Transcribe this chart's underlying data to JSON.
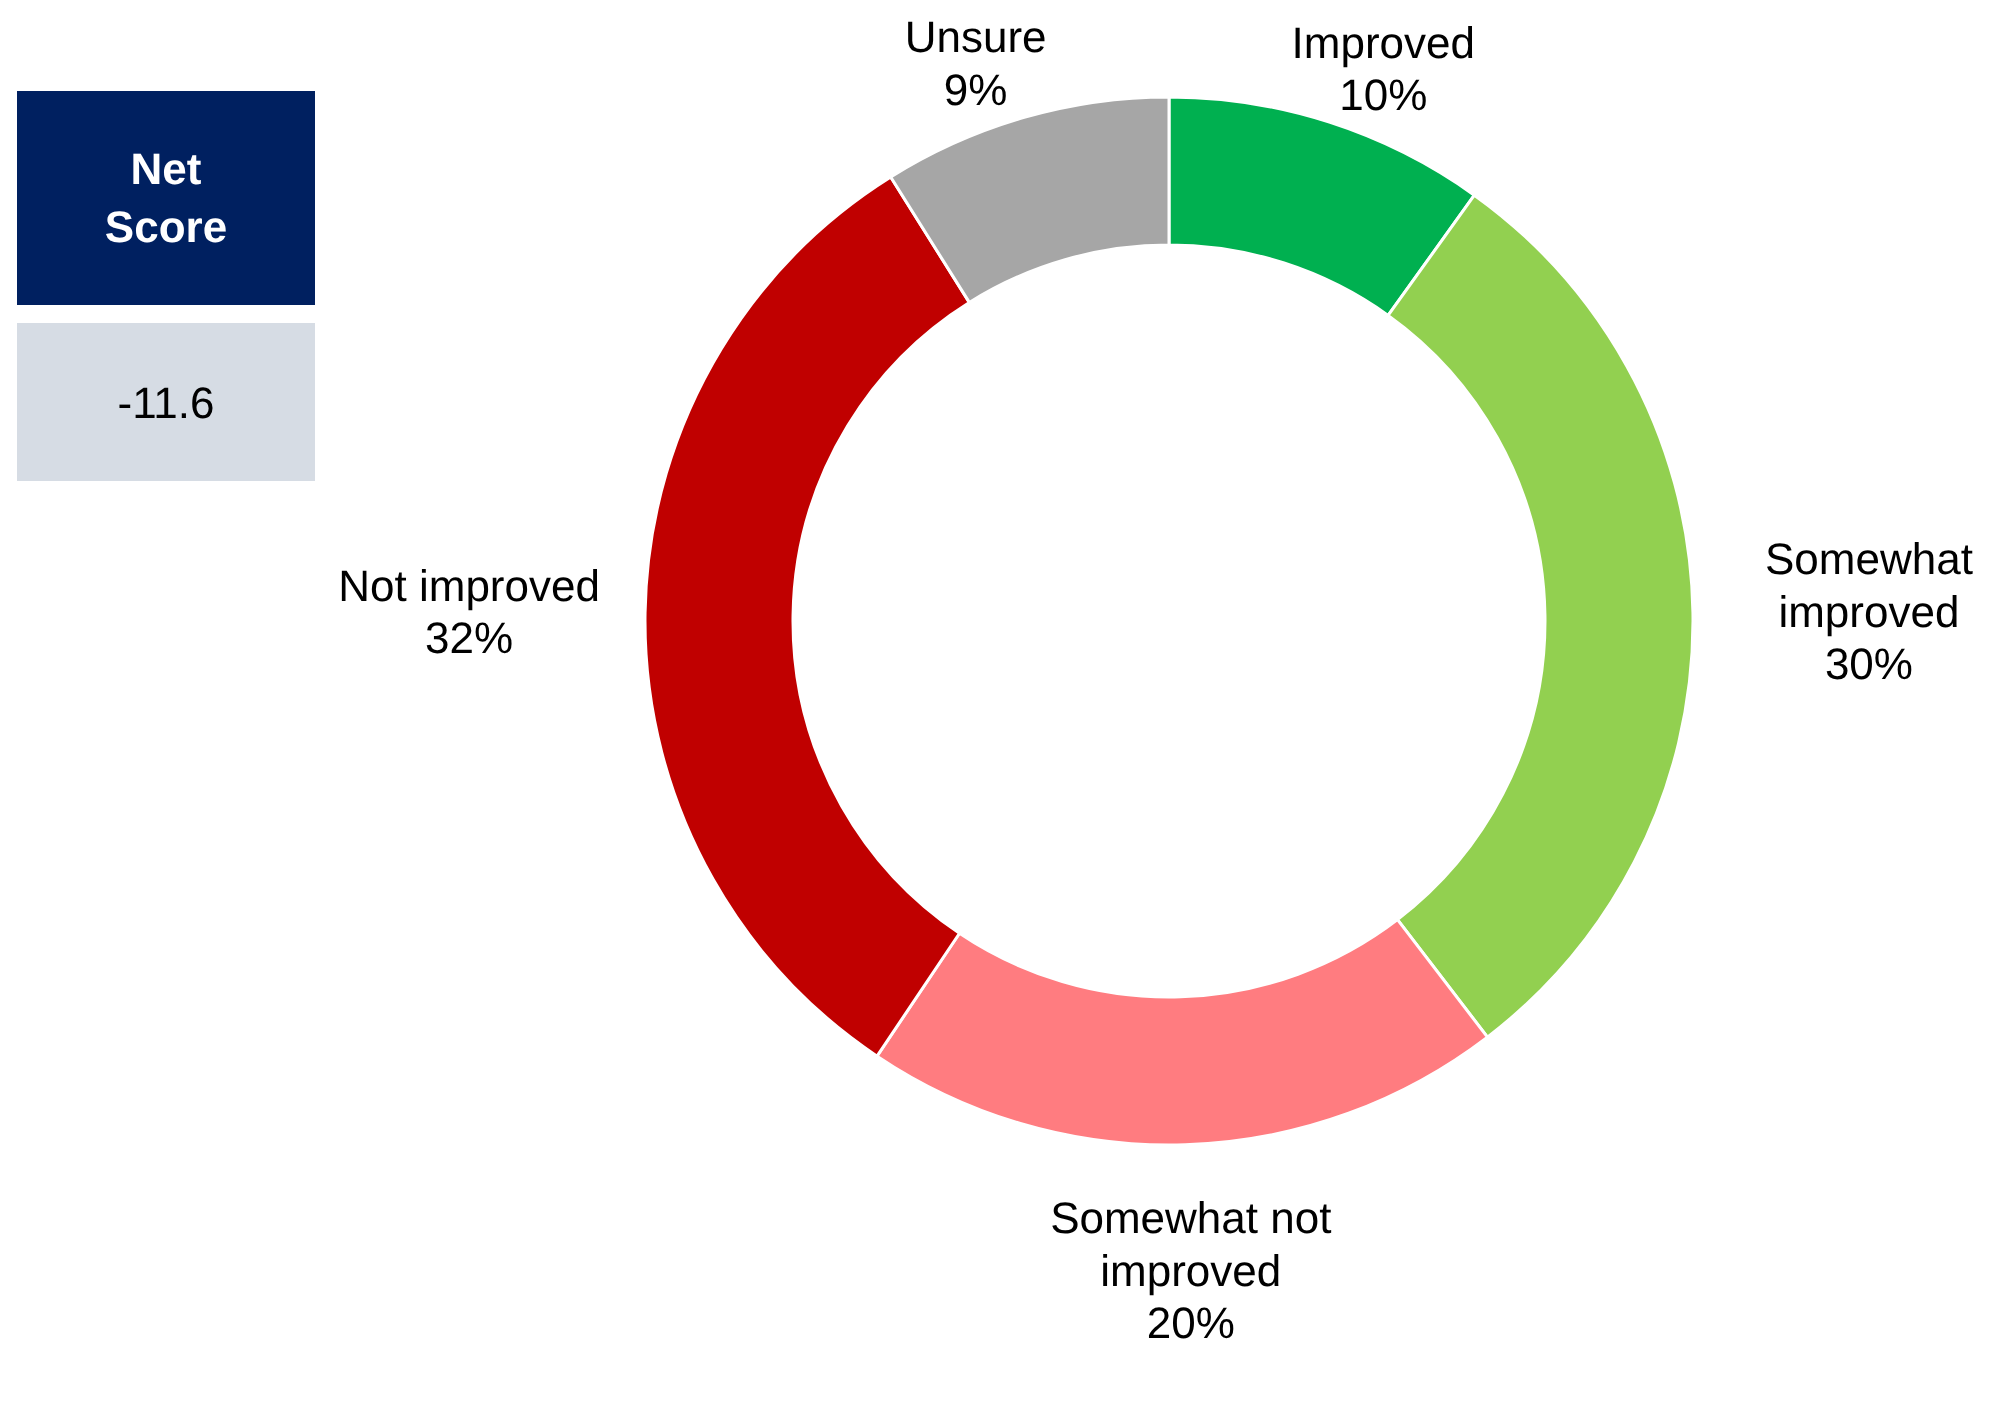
{
  "chart_data": {
    "type": "donut",
    "categories": [
      "Improved",
      "Somewhat\nimproved",
      "Somewhat not\nimproved",
      "Not improved",
      "Unsure"
    ],
    "values": [
      10,
      30,
      20,
      32,
      9
    ],
    "value_labels": [
      "10%",
      "30%",
      "20%",
      "32%",
      "9%"
    ],
    "colors": [
      "#00b050",
      "#92d050",
      "#ff7c80",
      "#c00000",
      "#a6a6a6"
    ],
    "annotations": [
      "Net\nScore",
      "-11.6"
    ]
  }
}
